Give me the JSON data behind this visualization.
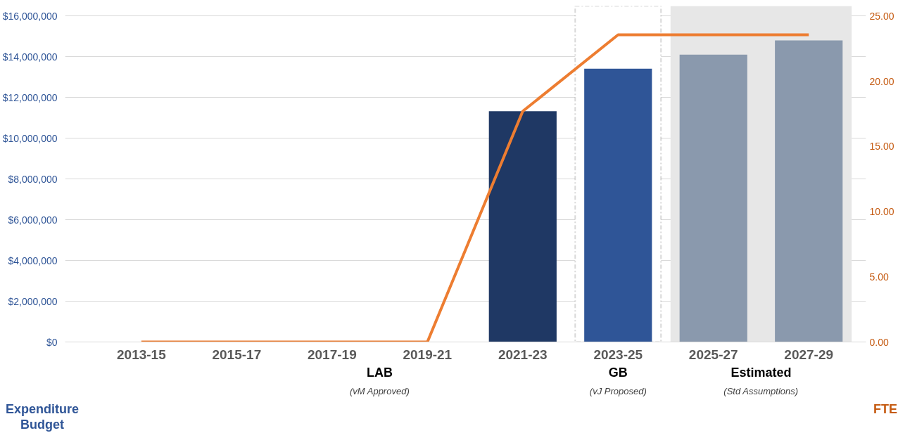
{
  "chart_data": {
    "type": "bar",
    "categories": [
      "2013-15",
      "2015-17",
      "2017-19",
      "2019-21",
      "2021-23",
      "2023-25",
      "2025-27",
      "2027-29"
    ],
    "series": [
      {
        "colors": [
          "#1f3864",
          "#1f3864",
          "#1f3864",
          "#1f3864",
          "#1f3864",
          "#2f5597",
          "#8a99ad",
          "#8a99ad"
        ],
        "values": [
          null,
          null,
          null,
          null,
          11330000,
          13420000,
          14110000,
          14810000
        ]
      },
      {
        "type": "line",
        "axis": "y2",
        "color": "#ed7d31",
        "values": [
          0,
          0,
          0,
          0,
          17.7,
          23.57,
          23.57,
          23.57
        ]
      }
    ],
    "ylabel": "Expenditure Budget",
    "y2label": "FTE",
    "ylim": [
      0,
      16500000
    ],
    "yticks": [
      {
        "value": 0,
        "label": "$0"
      },
      {
        "value": 2000000,
        "label": "$2,000,000"
      },
      {
        "value": 4000000,
        "label": "$4,000,000"
      },
      {
        "value": 6000000,
        "label": "$6,000,000"
      },
      {
        "value": 8000000,
        "label": "$8,000,000"
      },
      {
        "value": 10000000,
        "label": "$10,000,000"
      },
      {
        "value": 12000000,
        "label": "$12,000,000"
      },
      {
        "value": 14000000,
        "label": "$14,000,000"
      },
      {
        "value": 16000000,
        "label": "$16,000,000"
      }
    ],
    "y2lim": [
      0,
      25.78
    ],
    "y2ticks": [
      {
        "value": 0,
        "label": "0.00"
      },
      {
        "value": 5,
        "label": "5.00"
      },
      {
        "value": 10,
        "label": "10.00"
      },
      {
        "value": 15,
        "label": "15.00"
      },
      {
        "value": 20,
        "label": "20.00"
      },
      {
        "value": 25,
        "label": "25.00"
      }
    ],
    "grid": "y",
    "bands": [
      {
        "axis": "x",
        "from": "2023-25",
        "to": "2023-25",
        "color": "#ffffff"
      },
      {
        "axis": "x",
        "from": "2025-27",
        "to": "2027-29",
        "color": "#e7e7e7"
      }
    ],
    "annotations": [
      "LAB",
      "(vM Approved)",
      "GB",
      "(vJ Proposed)",
      "Estimated",
      "(Std Assumptions)"
    ]
  }
}
